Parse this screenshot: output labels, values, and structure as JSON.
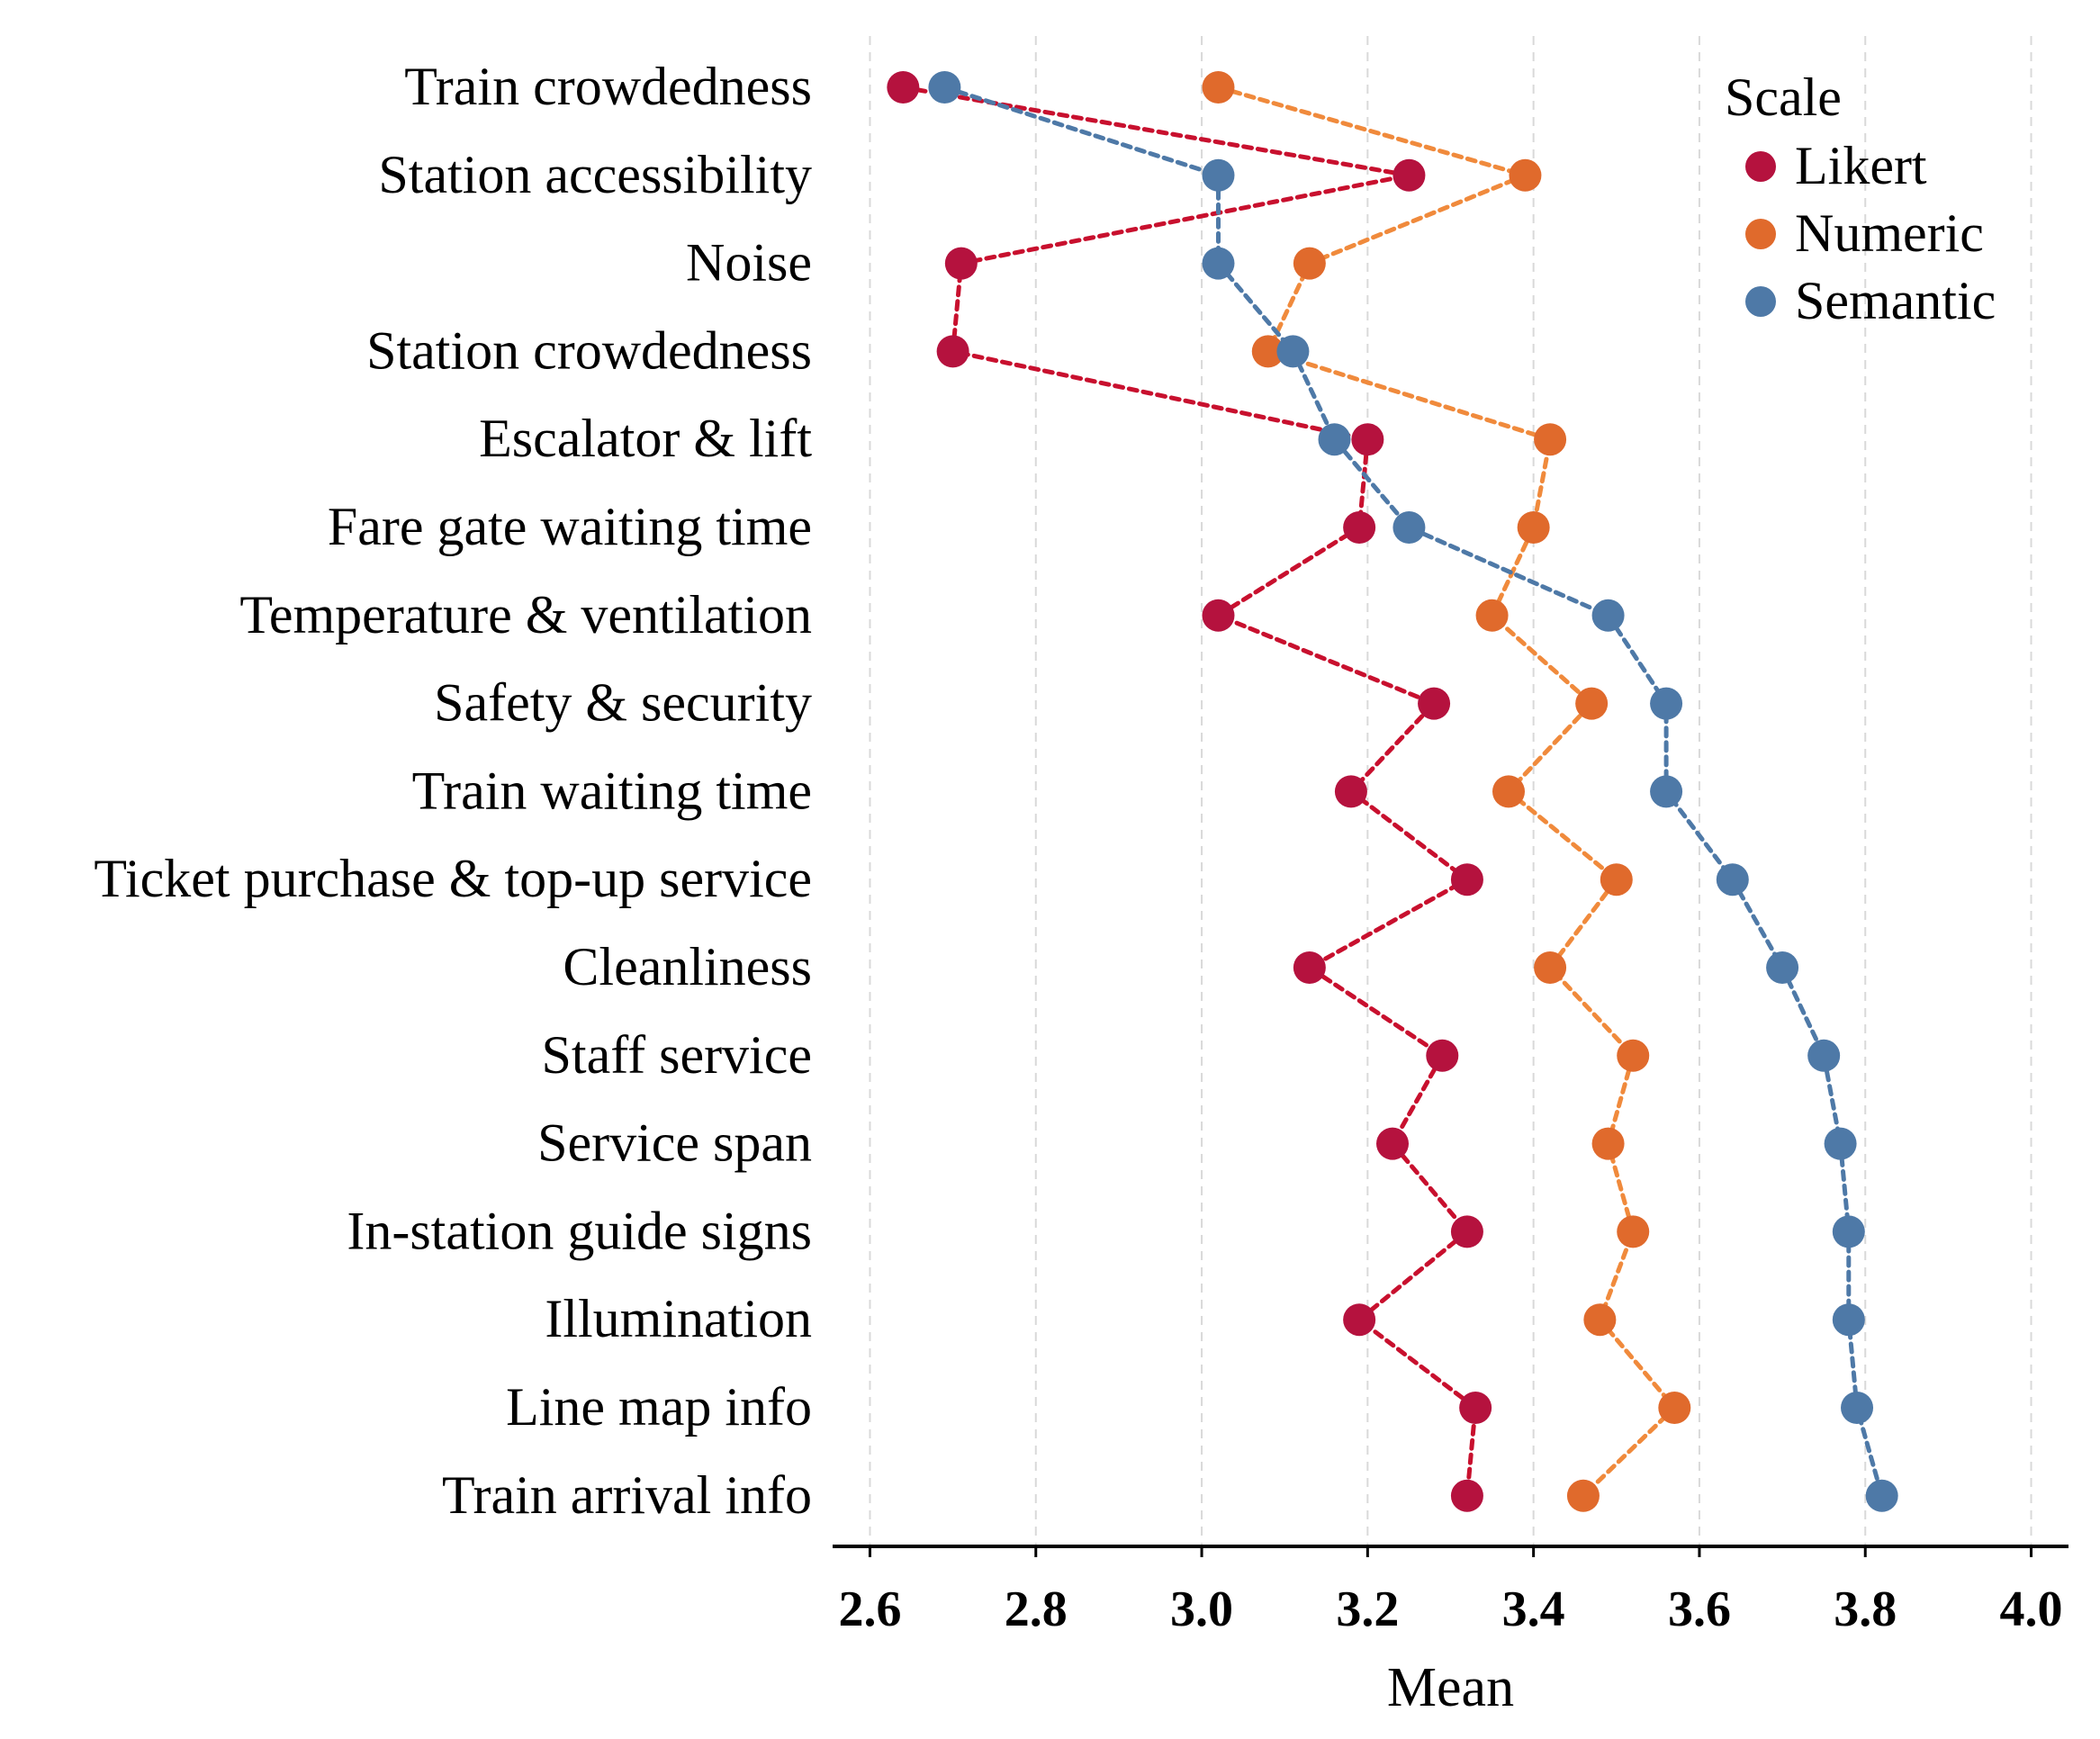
{
  "chart_data": {
    "type": "scatter",
    "style": "dot-plot with dashed connecting lines",
    "categories": [
      "Train crowdedness",
      "Station accessibility",
      "Noise",
      "Station crowdedness",
      "Escalator & lift",
      "Fare gate waiting time",
      "Temperature & ventilation",
      "Safety & security",
      "Train waiting time",
      "Ticket purchase & top-up service",
      "Cleanliness",
      "Staff service",
      "Service span",
      "In-station guide signs",
      "Illumination",
      "Line map info",
      "Train arrival info"
    ],
    "series": [
      {
        "name": "Likert",
        "color": "#b5123e",
        "line_color": "#c8102e",
        "values": [
          2.64,
          3.25,
          2.71,
          2.7,
          3.2,
          3.19,
          3.02,
          3.28,
          3.18,
          3.32,
          3.13,
          3.29,
          3.23,
          3.32,
          3.19,
          3.33,
          3.32
        ]
      },
      {
        "name": "Numeric",
        "color": "#e06a2c",
        "line_color": "#f08a3c",
        "values": [
          3.02,
          3.39,
          3.13,
          3.08,
          3.42,
          3.4,
          3.35,
          3.47,
          3.37,
          3.5,
          3.42,
          3.52,
          3.49,
          3.52,
          3.48,
          3.57,
          3.46
        ]
      },
      {
        "name": "Semantic",
        "color": "#4e79a7",
        "line_color": "#4e79a7",
        "values": [
          2.69,
          3.02,
          3.02,
          3.11,
          3.16,
          3.25,
          3.49,
          3.56,
          3.56,
          3.64,
          3.7,
          3.75,
          3.77,
          3.78,
          3.78,
          3.79,
          3.82
        ]
      }
    ],
    "xlabel": "Mean",
    "xlim": [
      2.555,
      4.045
    ],
    "xticks": [
      "2.6",
      "2.8",
      "3.0",
      "3.2",
      "3.4",
      "3.6",
      "3.8",
      "4.0"
    ],
    "grid": "vertical dashed",
    "legend": {
      "title": "Scale",
      "placement": "top-right"
    }
  }
}
